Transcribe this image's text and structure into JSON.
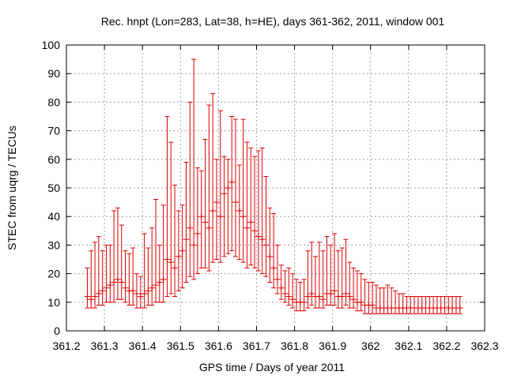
{
  "chart_data": {
    "type": "scatter",
    "title": "Rec. hnpt (Lon=283, Lat=38, h=HE), days 361-362, 2011, window 001",
    "xlabel": "GPS time / Days of year 2011",
    "ylabel": "STEC from uqrg / TECUs",
    "xlim": [
      361.2,
      362.3
    ],
    "ylim": [
      0,
      100
    ],
    "xticks": [
      361.2,
      361.3,
      361.4,
      361.5,
      361.6,
      361.7,
      361.8,
      361.9,
      362.0,
      362.1,
      362.2,
      362.3
    ],
    "xtick_labels": [
      "361.2",
      "361.3",
      "361.4",
      "361.5",
      "361.6",
      "361.7",
      "361.8",
      "361.9",
      "362",
      "362.1",
      "362.2",
      "362.3"
    ],
    "yticks": [
      0,
      10,
      20,
      30,
      40,
      50,
      60,
      70,
      80,
      90,
      100
    ],
    "ytick_labels": [
      "0",
      "10",
      "20",
      "30",
      "40",
      "50",
      "60",
      "70",
      "80",
      "90",
      "100"
    ],
    "grid": true,
    "legend": "none",
    "series": [
      {
        "name": "STEC",
        "color": "#dd0000",
        "marker": "plus-errorbar",
        "x": [
          361.255,
          361.265,
          361.275,
          361.285,
          361.295,
          361.305,
          361.315,
          361.325,
          361.335,
          361.345,
          361.355,
          361.365,
          361.375,
          361.385,
          361.395,
          361.405,
          361.415,
          361.425,
          361.435,
          361.445,
          361.455,
          361.465,
          361.475,
          361.485,
          361.495,
          361.505,
          361.515,
          361.525,
          361.535,
          361.545,
          361.555,
          361.565,
          361.575,
          361.585,
          361.595,
          361.605,
          361.615,
          361.625,
          361.635,
          361.645,
          361.655,
          361.665,
          361.675,
          361.685,
          361.695,
          361.705,
          361.715,
          361.725,
          361.735,
          361.745,
          361.755,
          361.765,
          361.775,
          361.785,
          361.795,
          361.805,
          361.815,
          361.825,
          361.835,
          361.845,
          361.855,
          361.865,
          361.875,
          361.885,
          361.895,
          361.905,
          361.915,
          361.925,
          361.935,
          361.945,
          361.955,
          361.965,
          361.975,
          361.985,
          361.995,
          362.005,
          362.015,
          362.025,
          362.035,
          362.045,
          362.055,
          362.065,
          362.075,
          362.085,
          362.095,
          362.105,
          362.115,
          362.125,
          362.135,
          362.145,
          362.155,
          362.165,
          362.175,
          362.185,
          362.195,
          362.205,
          362.215,
          362.225,
          362.235
        ],
        "high": [
          22,
          28,
          31,
          33,
          28,
          30,
          30,
          42,
          43,
          37,
          28,
          27,
          29,
          20,
          19,
          34,
          29,
          36,
          46,
          30,
          44,
          75,
          66,
          51,
          42,
          44,
          59,
          80,
          95,
          57,
          56,
          67,
          79,
          83,
          60,
          77,
          61,
          60,
          75,
          74,
          58,
          74,
          66,
          64,
          61,
          63,
          64,
          54,
          43,
          41,
          30,
          23,
          21,
          22,
          20,
          18,
          17,
          18,
          28,
          31,
          26,
          31,
          28,
          33,
          30,
          34,
          28,
          29,
          32,
          24,
          22,
          21,
          20,
          18,
          17,
          17,
          16,
          15,
          15,
          16,
          15,
          14,
          13,
          13,
          12,
          12,
          12,
          12,
          12,
          12,
          12,
          12,
          12,
          12,
          12,
          12,
          12,
          12,
          12
        ],
        "values": [
          12,
          11,
          12,
          13,
          14,
          15,
          16,
          17,
          18,
          17,
          15,
          14,
          14,
          13,
          12,
          13,
          14,
          15,
          16,
          17,
          18,
          25,
          24,
          22,
          26,
          28,
          32,
          36,
          30,
          34,
          40,
          38,
          36,
          42,
          45,
          40,
          48,
          50,
          52,
          45,
          42,
          40,
          36,
          38,
          35,
          33,
          32,
          30,
          26,
          22,
          18,
          15,
          13,
          12,
          11,
          10,
          10,
          10,
          12,
          13,
          12,
          12,
          11,
          13,
          13,
          14,
          12,
          12,
          13,
          12,
          11,
          10,
          10,
          9,
          9,
          9,
          8,
          8,
          8,
          8,
          8,
          8,
          8,
          8,
          8,
          8,
          8,
          8,
          8,
          8,
          8,
          8,
          8,
          8,
          8,
          8,
          8,
          8,
          8
        ],
        "low": [
          8,
          8,
          8,
          9,
          9,
          10,
          10,
          10,
          11,
          11,
          10,
          9,
          9,
          8,
          8,
          8,
          9,
          9,
          10,
          10,
          10,
          12,
          13,
          12,
          14,
          15,
          17,
          19,
          18,
          20,
          22,
          22,
          21,
          24,
          25,
          24,
          26,
          27,
          28,
          26,
          25,
          24,
          22,
          23,
          22,
          21,
          20,
          19,
          17,
          15,
          13,
          11,
          10,
          9,
          8,
          7,
          7,
          7,
          8,
          9,
          8,
          8,
          8,
          9,
          9,
          9,
          8,
          8,
          9,
          8,
          8,
          7,
          7,
          6,
          6,
          6,
          6,
          6,
          6,
          6,
          6,
          6,
          6,
          6,
          6,
          6,
          6,
          6,
          6,
          6,
          6,
          6,
          6,
          6,
          6,
          6,
          6,
          6,
          6
        ]
      }
    ]
  }
}
